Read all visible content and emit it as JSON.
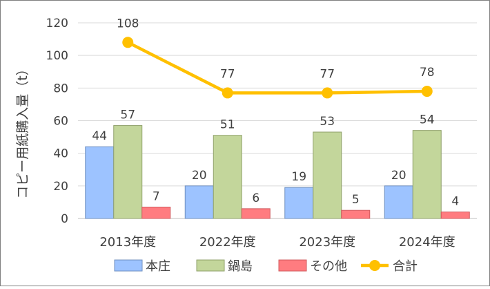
{
  "chart_data": {
    "type": "bar",
    "categories": [
      "2013年度",
      "2022年度",
      "2023年度",
      "2024年度"
    ],
    "series": [
      {
        "name": "本庄",
        "type": "bar",
        "color": "#9dc3ff",
        "stroke": "#6f8fbf",
        "values": [
          44,
          20,
          19,
          20
        ]
      },
      {
        "name": "鍋島",
        "type": "bar",
        "color": "#c3d69b",
        "stroke": "#8fa06a",
        "values": [
          57,
          51,
          53,
          54
        ]
      },
      {
        "name": "その他",
        "type": "bar",
        "color": "#ff7c80",
        "stroke": "#d05a5e",
        "values": [
          7,
          6,
          5,
          4
        ]
      },
      {
        "name": "合計",
        "type": "line",
        "color": "#ffc000",
        "values": [
          108,
          77,
          77,
          78
        ]
      }
    ],
    "ylabel": "コピー用紙購入量（t）",
    "xlabel": "",
    "ylim": [
      0,
      120
    ],
    "yticks": [
      0,
      20,
      40,
      60,
      80,
      100,
      120
    ],
    "grid": true,
    "legend": "bottom"
  }
}
